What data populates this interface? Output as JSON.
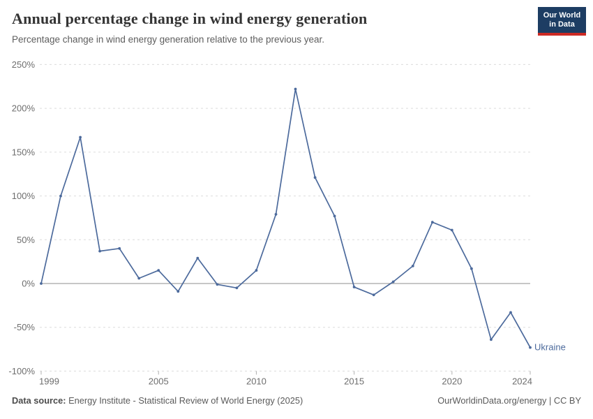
{
  "header": {
    "title": "Annual percentage change in wind energy generation",
    "subtitle": "Percentage change in wind energy generation relative to the previous year.",
    "logo": {
      "line1": "Our World",
      "line2": "in Data",
      "bg_color": "#1d3d63",
      "accent_color": "#cc2a24"
    }
  },
  "chart_data": {
    "type": "line",
    "title": "Annual percentage change in wind energy generation",
    "x": [
      1999,
      2000,
      2001,
      2002,
      2003,
      2004,
      2005,
      2006,
      2007,
      2008,
      2009,
      2010,
      2011,
      2012,
      2013,
      2014,
      2015,
      2016,
      2017,
      2018,
      2019,
      2020,
      2021,
      2022,
      2023,
      2024
    ],
    "series": [
      {
        "name": "Ukraine",
        "color": "#4c6a9c",
        "values": [
          0,
          100,
          167,
          37,
          40,
          6,
          15,
          -9,
          29,
          -1,
          -5,
          15,
          79,
          222,
          121,
          77,
          -4,
          -13,
          2,
          20,
          70,
          61,
          17,
          -64,
          -33,
          -73
        ]
      }
    ],
    "xlabel": "",
    "ylabel": "",
    "ylim": [
      -100,
      250
    ],
    "y_ticks": [
      250,
      200,
      150,
      100,
      50,
      0,
      -50,
      -100
    ],
    "y_tick_suffix": "%",
    "x_ticks": [
      1999,
      2005,
      2010,
      2015,
      2020,
      2024
    ],
    "grid": "horizontal-dashed",
    "zero_line": true,
    "legend_position": "end-of-line-label",
    "end_label": "Ukraine"
  },
  "footer": {
    "source_label": "Data source:",
    "source_text": " Energy Institute - Statistical Review of World Energy (2025)",
    "right_text": "OurWorldinData.org/energy | CC BY"
  },
  "colors": {
    "line": "#4c6a9c",
    "grid": "#dcdcdc",
    "zero_line": "#8f8f8f",
    "axis_text": "#6e6e6e"
  }
}
